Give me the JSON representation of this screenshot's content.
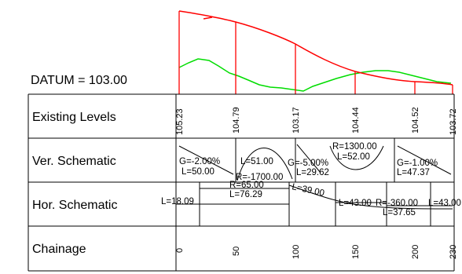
{
  "datum_label": "DATUM = 103.00",
  "rows": {
    "existing_levels": "Existing Levels",
    "ver_schematic": "Ver. Schematic",
    "hor_schematic": "Hor. Schematic",
    "chainage": "Chainage"
  },
  "existing_levels": [
    "105.23",
    "104.79",
    "103.17",
    "104.44",
    "104.52",
    "103.72"
  ],
  "chainage_ticks": [
    "0",
    "50",
    "100",
    "150",
    "200",
    "230"
  ],
  "vertical_schematic": {
    "segment_1": {
      "grade": "G=-2.00%",
      "length": "L=50.00"
    },
    "curve_1": {
      "radius": "R=-1700.00",
      "length": "L=51.00"
    },
    "segment_2": {
      "grade": "G=-5.00%",
      "length": "L=29.62"
    },
    "curve_2": {
      "radius": "R=1300.00",
      "length": "L=52.00"
    },
    "segment_3": {
      "grade": "G=-1.00%",
      "length": "L=47.37"
    }
  },
  "horizontal_schematic": {
    "start_length": "L=18.09",
    "curve_1": {
      "radius": "R=65.00",
      "length": "L=76.29"
    },
    "spiral_length": "L=39.00",
    "tangent_length": "L=43.00",
    "curve_2": {
      "radius": "R=-360.00",
      "length": "L=37.65"
    },
    "end_length": "L=43.00"
  },
  "colors": {
    "design_profile": "#ff0000",
    "existing_ground": "#00dd00",
    "grid": "#000000"
  }
}
